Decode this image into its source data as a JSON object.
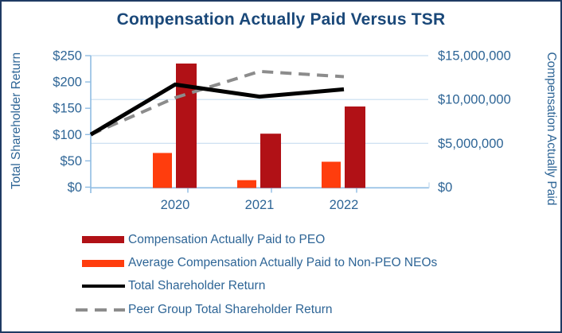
{
  "title": "Compensation Actually Paid Versus TSR",
  "colors": {
    "title_text": "#1a4879",
    "axis_text": "#2e6596",
    "axis_line": "#8fbce3",
    "gridline": "#c7ddf1",
    "frame_border": "#1f3a63",
    "peo_bar": "#b11116",
    "non_peo_bar": "#ff3d0d",
    "tsr_line": "#000000",
    "peer_line": "#8c8c8c",
    "background": "#ffffff"
  },
  "chart_data": {
    "type": "combo-bar-line",
    "categories": [
      "2020",
      "2021",
      "2022"
    ],
    "bar_series": [
      {
        "name": "Compensation Actually Paid to PEO",
        "axis": "right",
        "color_key": "peo_bar",
        "values": [
          14100000,
          6100000,
          9200000
        ]
      },
      {
        "name": "Average Compensation Actually Paid to Non-PEO NEOs",
        "axis": "right",
        "color_key": "non_peo_bar",
        "values": [
          3900000,
          800000,
          2900000
        ]
      }
    ],
    "line_series": [
      {
        "name": "Total Shareholder Return",
        "axis": "left",
        "color_key": "tsr_line",
        "dash": false,
        "x_positions": [
          "axis-start",
          "2020",
          "2021",
          "2022"
        ],
        "values": [
          100,
          195,
          172,
          186
        ]
      },
      {
        "name": "Peer Group Total Shareholder Return",
        "axis": "left",
        "color_key": "peer_line",
        "dash": true,
        "x_positions": [
          "axis-start",
          "2020",
          "2021",
          "2022"
        ],
        "values": [
          100,
          170,
          220,
          210
        ]
      }
    ],
    "left_axis": {
      "title": "Total Shareholder Return",
      "min": 0,
      "max": 250,
      "tick_values": [
        0,
        50,
        100,
        150,
        200,
        250
      ],
      "tick_labels": [
        "$0",
        "$50",
        "$100",
        "$150",
        "$200",
        "$250"
      ]
    },
    "right_axis": {
      "title": "Compensation Actually Paid",
      "min": 0,
      "max": 15000000,
      "tick_values": [
        0,
        5000000,
        10000000,
        15000000
      ],
      "tick_labels": [
        "$0",
        "$5,000,000",
        "$10,000,000",
        "$15,000,000"
      ]
    },
    "gridlines": "horizontal-at-right-axis-ticks",
    "legend": [
      {
        "swatch": "bar",
        "color_key": "peo_bar",
        "label": "Compensation Actually Paid to PEO"
      },
      {
        "swatch": "bar",
        "color_key": "non_peo_bar",
        "label": "Average Compensation Actually Paid to Non-PEO NEOs"
      },
      {
        "swatch": "line-solid",
        "color_key": "tsr_line",
        "label": "Total Shareholder Return"
      },
      {
        "swatch": "line-dashed",
        "color_key": "peer_line",
        "label": "Peer Group Total Shareholder Return"
      }
    ]
  }
}
